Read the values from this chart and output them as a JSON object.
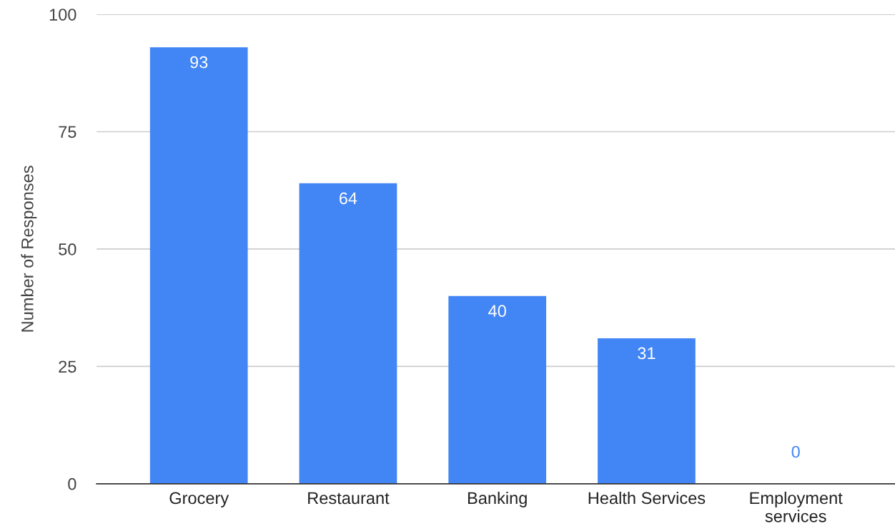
{
  "chart_data": {
    "type": "bar",
    "ylabel": "Number of Responses",
    "categories": [
      "Grocery",
      "Restaurant",
      "Banking",
      "Health Services",
      "Employment\nservices"
    ],
    "values": [
      93,
      64,
      40,
      31,
      0
    ],
    "color": "#4285f4",
    "ylim": [
      0,
      100
    ],
    "yticks": [
      0,
      25,
      50,
      75,
      100
    ],
    "grid": "y",
    "data_labels": true
  }
}
